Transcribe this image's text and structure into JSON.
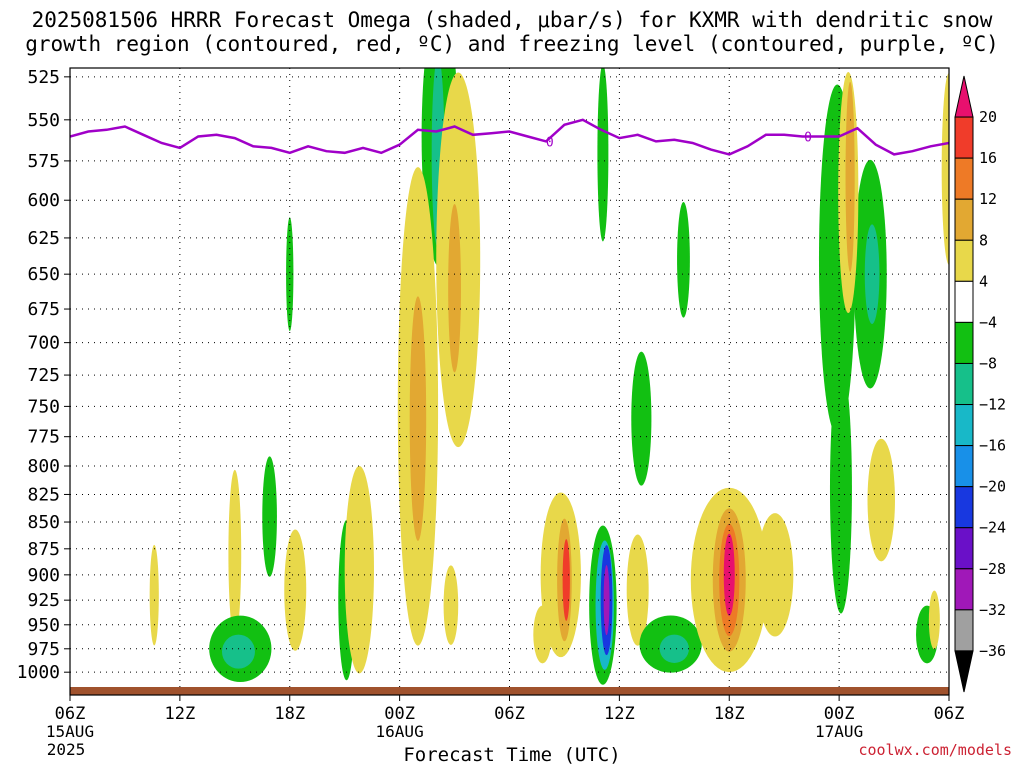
{
  "title": {
    "line1": "2025081506 HRRR Forecast Omega (shaded, μbar/s) for KXMR with dendritic snow",
    "line2": "growth region (contoured, red, ºC) and freezing level (contoured, purple, ºC)"
  },
  "credit": "coolwx.com/models",
  "colors": {
    "freezing_level": "#a000c8",
    "ground": "#a0522d",
    "grid": "#000000"
  },
  "chart_data": {
    "type": "heatmap",
    "title": "2025081506 HRRR Forecast Omega (shaded, μbar/s) for KXMR with dendritic snow growth region (contoured, red, ºC) and freezing level (contoured, purple, ºC)",
    "xlabel": "Forecast Time (UTC)",
    "ylabel": "",
    "x_range_hours": [
      0,
      48
    ],
    "y_range_hPa": [
      1000,
      520
    ],
    "y_ticks": [
      525,
      550,
      575,
      600,
      625,
      650,
      675,
      700,
      725,
      750,
      775,
      800,
      825,
      850,
      875,
      900,
      925,
      950,
      975,
      1000
    ],
    "x_ticks": [
      {
        "hour": 0,
        "label": "06Z",
        "date": "15AUG",
        "year": "2025"
      },
      {
        "hour": 6,
        "label": "12Z"
      },
      {
        "hour": 12,
        "label": "18Z"
      },
      {
        "hour": 18,
        "label": "00Z",
        "date": "16AUG"
      },
      {
        "hour": 24,
        "label": "06Z"
      },
      {
        "hour": 30,
        "label": "12Z"
      },
      {
        "hour": 36,
        "label": "18Z"
      },
      {
        "hour": 42,
        "label": "00Z",
        "date": "17AUG"
      },
      {
        "hour": 48,
        "label": "06Z"
      }
    ],
    "grid": true,
    "colorbar": {
      "labels": [
        "20",
        "16",
        "12",
        "8",
        "4",
        "−4",
        "−8",
        "−12",
        "−16",
        "−20",
        "−24",
        "−28",
        "−32",
        "−36"
      ],
      "colors": [
        "#e8106e",
        "#f03c2a",
        "#ee7a26",
        "#e2a832",
        "#e8d84a",
        "#ffffff",
        "#12c012",
        "#16c08a",
        "#18b8c8",
        "#1890e8",
        "#1838e0",
        "#6a10c8",
        "#a018b8",
        "#a0a0a0",
        "#000000"
      ]
    },
    "freezing_level_label": "0",
    "freezing_level_hPa": [
      {
        "h": 0,
        "p": 560
      },
      {
        "h": 1,
        "p": 557
      },
      {
        "h": 2,
        "p": 556
      },
      {
        "h": 3,
        "p": 554
      },
      {
        "h": 4,
        "p": 559
      },
      {
        "h": 5,
        "p": 564
      },
      {
        "h": 6,
        "p": 567
      },
      {
        "h": 7,
        "p": 560
      },
      {
        "h": 8,
        "p": 559
      },
      {
        "h": 9,
        "p": 561
      },
      {
        "h": 10,
        "p": 566
      },
      {
        "h": 11,
        "p": 567
      },
      {
        "h": 12,
        "p": 570
      },
      {
        "h": 13,
        "p": 566
      },
      {
        "h": 14,
        "p": 569
      },
      {
        "h": 15,
        "p": 570
      },
      {
        "h": 16,
        "p": 567
      },
      {
        "h": 17,
        "p": 570
      },
      {
        "h": 18,
        "p": 565
      },
      {
        "h": 19,
        "p": 556
      },
      {
        "h": 20,
        "p": 557
      },
      {
        "h": 21,
        "p": 554
      },
      {
        "h": 22,
        "p": 559
      },
      {
        "h": 23,
        "p": 558
      },
      {
        "h": 24,
        "p": 557
      },
      {
        "h": 25,
        "p": 560
      },
      {
        "h": 26,
        "p": 563
      },
      {
        "h": 27,
        "p": 553
      },
      {
        "h": 28,
        "p": 550
      },
      {
        "h": 29,
        "p": 556
      },
      {
        "h": 30,
        "p": 561
      },
      {
        "h": 31,
        "p": 559
      },
      {
        "h": 32,
        "p": 563
      },
      {
        "h": 33,
        "p": 562
      },
      {
        "h": 34,
        "p": 564
      },
      {
        "h": 35,
        "p": 568
      },
      {
        "h": 36,
        "p": 571
      },
      {
        "h": 37,
        "p": 566
      },
      {
        "h": 38,
        "p": 559
      },
      {
        "h": 39,
        "p": 559
      },
      {
        "h": 40,
        "p": 560
      },
      {
        "h": 41,
        "p": 560
      },
      {
        "h": 42,
        "p": 560
      },
      {
        "h": 43,
        "p": 555
      },
      {
        "h": 44,
        "p": 565
      },
      {
        "h": 45,
        "p": 571
      },
      {
        "h": 46,
        "p": 569
      },
      {
        "h": 47,
        "p": 566
      },
      {
        "h": 48,
        "p": 564
      }
    ],
    "omega_regions": [
      {
        "name": "green-left",
        "hour": 20.2,
        "p": 560,
        "hw": 1.0,
        "hp": 130,
        "value": -5
      },
      {
        "name": "green-left-core",
        "hour": 20.1,
        "p": 570,
        "hw": 0.35,
        "hp": 70,
        "value": -10
      },
      {
        "name": "yellow-1",
        "hour": 19.0,
        "p": 750,
        "hw": 1.1,
        "hp": 190,
        "value": 5
      },
      {
        "name": "orange-1",
        "hour": 19.0,
        "p": 760,
        "hw": 0.45,
        "hp": 100,
        "value": 9
      },
      {
        "name": "yellow-2",
        "hour": 21.2,
        "p": 640,
        "hw": 1.2,
        "hp": 140,
        "value": 5
      },
      {
        "name": "orange-2",
        "hour": 21.0,
        "p": 660,
        "hw": 0.35,
        "hp": 60,
        "value": 9
      },
      {
        "name": "green-13",
        "hour": 12.0,
        "p": 650,
        "hw": 0.2,
        "hp": 40,
        "value": -5
      },
      {
        "name": "yellow-3",
        "hour": 9.0,
        "p": 880,
        "hw": 0.35,
        "hp": 80,
        "value": 5
      },
      {
        "name": "green-15",
        "hour": 10.9,
        "p": 845,
        "hw": 0.4,
        "hp": 55,
        "value": -5
      },
      {
        "name": "green-bottom-left",
        "hour": 9.3,
        "p": 975,
        "hw": 1.7,
        "hp": 35,
        "value": -5
      },
      {
        "name": "teal-bottom-left",
        "hour": 9.2,
        "p": 978,
        "hw": 0.9,
        "hp": 18,
        "value": -10
      },
      {
        "name": "yellow-4",
        "hour": 12.3,
        "p": 915,
        "hw": 0.6,
        "hp": 60,
        "value": 5
      },
      {
        "name": "green-20",
        "hour": 15.1,
        "p": 925,
        "hw": 0.45,
        "hp": 80,
        "value": -5
      },
      {
        "name": "yellow-5",
        "hour": 15.8,
        "p": 895,
        "hw": 0.8,
        "hp": 100,
        "value": 5
      },
      {
        "name": "yellow-6",
        "hour": 4.6,
        "p": 920,
        "hw": 0.25,
        "hp": 50,
        "value": 5
      },
      {
        "name": "yellow-near-21",
        "hour": 20.8,
        "p": 930,
        "hw": 0.4,
        "hp": 40,
        "value": 5
      },
      {
        "name": "yellow-7",
        "hour": 26.8,
        "p": 900,
        "hw": 1.1,
        "hp": 80,
        "value": 5
      },
      {
        "name": "orange-7",
        "hour": 27.0,
        "p": 905,
        "hw": 0.4,
        "hp": 60,
        "value": 10
      },
      {
        "name": "red-7",
        "hour": 27.1,
        "p": 905,
        "hw": 0.2,
        "hp": 40,
        "value": 16
      },
      {
        "name": "green-ring",
        "hour": 29.1,
        "p": 930,
        "hw": 0.75,
        "hp": 80,
        "value": -5
      },
      {
        "name": "teal-ring",
        "hour": 29.2,
        "p": 930,
        "hw": 0.5,
        "hp": 65,
        "value": -12
      },
      {
        "name": "blue-ring",
        "hour": 29.3,
        "p": 925,
        "hw": 0.32,
        "hp": 55,
        "value": -20
      },
      {
        "name": "purple-ring",
        "hour": 29.3,
        "p": 925,
        "hw": 0.16,
        "hp": 35,
        "value": -28
      },
      {
        "name": "green-28",
        "hour": 29.1,
        "p": 570,
        "hw": 0.3,
        "hp": 60,
        "value": -5
      },
      {
        "name": "green-31",
        "hour": 31.2,
        "p": 760,
        "hw": 0.55,
        "hp": 55,
        "value": -5
      },
      {
        "name": "yellow-32",
        "hour": 31.0,
        "p": 915,
        "hw": 0.6,
        "hp": 55,
        "value": 5
      },
      {
        "name": "green-bottom-mid",
        "hour": 32.8,
        "p": 970,
        "hw": 1.7,
        "hp": 30,
        "value": -5
      },
      {
        "name": "teal-bottom-mid",
        "hour": 33.0,
        "p": 975,
        "hw": 0.8,
        "hp": 15,
        "value": -10
      },
      {
        "name": "green-33",
        "hour": 33.5,
        "p": 640,
        "hw": 0.35,
        "hp": 40,
        "value": -5
      },
      {
        "name": "yellow-center",
        "hour": 36.0,
        "p": 905,
        "hw": 2.1,
        "hp": 90,
        "value": 5
      },
      {
        "name": "orange-center",
        "hour": 36.0,
        "p": 905,
        "hw": 0.9,
        "hp": 70,
        "value": 10
      },
      {
        "name": "red-center",
        "hour": 36.0,
        "p": 905,
        "hw": 0.55,
        "hp": 55,
        "value": 15
      },
      {
        "name": "pink-center",
        "hour": 36.0,
        "p": 900,
        "hw": 0.3,
        "hp": 40,
        "value": 20
      },
      {
        "name": "green-right-tall",
        "hour": 41.9,
        "p": 640,
        "hw": 1.0,
        "hp": 120,
        "value": -5
      },
      {
        "name": "green-right-2",
        "hour": 43.7,
        "p": 650,
        "hw": 0.9,
        "hp": 80,
        "value": -5
      },
      {
        "name": "teal-right",
        "hour": 43.8,
        "p": 650,
        "hw": 0.4,
        "hp": 35,
        "value": -10
      },
      {
        "name": "yellow-right",
        "hour": 42.5,
        "p": 595,
        "hw": 0.55,
        "hp": 80,
        "value": 5
      },
      {
        "name": "orange-right",
        "hour": 42.6,
        "p": 585,
        "hw": 0.25,
        "hp": 60,
        "value": 10
      },
      {
        "name": "yellow-right-low",
        "hour": 44.3,
        "p": 830,
        "hw": 0.75,
        "hp": 55,
        "value": 5
      },
      {
        "name": "green-right-low",
        "hour": 42.1,
        "p": 820,
        "hw": 0.6,
        "hp": 110,
        "value": -5
      },
      {
        "name": "green-right-bot",
        "hour": 46.8,
        "p": 960,
        "hw": 0.6,
        "hp": 30,
        "value": -5
      },
      {
        "name": "yellow-far-right",
        "hour": 48.0,
        "p": 580,
        "hw": 0.4,
        "hp": 60,
        "value": 5
      },
      {
        "name": "yellow-far-right-bot",
        "hour": 47.2,
        "p": 945,
        "hw": 0.3,
        "hp": 30,
        "value": 5
      },
      {
        "name": "yellow-38",
        "hour": 38.5,
        "p": 900,
        "hw": 1.0,
        "hp": 60,
        "value": 5
      },
      {
        "name": "yellow-22",
        "hour": 25.8,
        "p": 960,
        "hw": 0.5,
        "hp": 30,
        "value": 5
      }
    ]
  }
}
